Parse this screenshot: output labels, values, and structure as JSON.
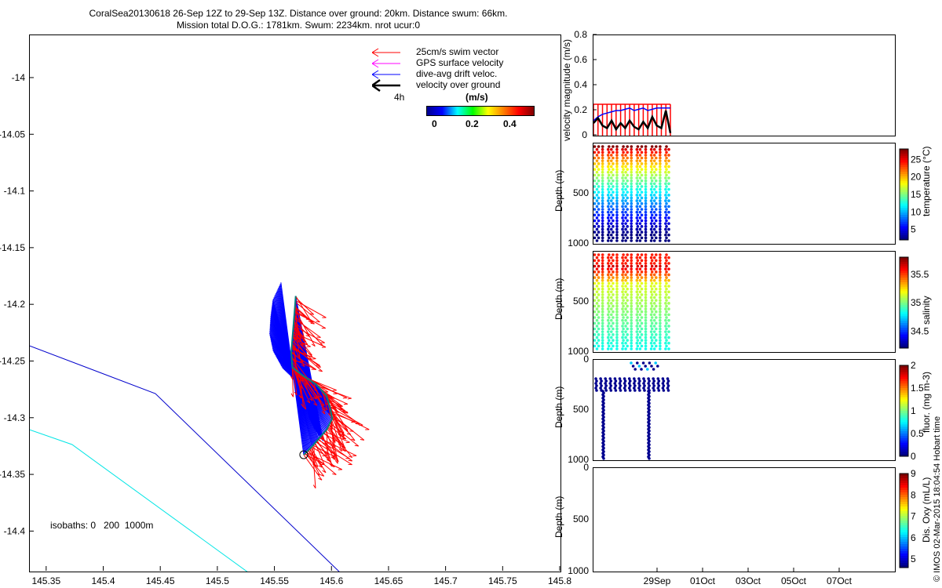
{
  "title": {
    "line1": "CoralSea20130618 26-Sep 12Z to 29-Sep 13Z. Distance over ground: 20km. Distance swum: 66km.",
    "line2": "Mission total D.O.G.: 1781km. Swum: 2234km. nrot ucur:0"
  },
  "colors": {
    "red": "#ff0000",
    "blue": "#0000ff",
    "magenta": "#ff00ff",
    "cyan": "#00ffff",
    "navy": "#000080"
  },
  "copyright": "© IMOS 02-Mar-2015 18:04:54 Hobart time",
  "chart_data": [
    {
      "type": "scatter",
      "name": "track map",
      "xlabel": "",
      "ylabel": "",
      "xlim": [
        145.335,
        145.8
      ],
      "ylim": [
        -14.435,
        -13.962
      ],
      "xticks": [
        "145.35",
        "145.4",
        "145.45",
        "145.5",
        "145.55",
        "145.6",
        "145.65",
        "145.7",
        "145.75",
        "145.8"
      ],
      "yticks": [
        "-14",
        "-14.05",
        "-14.1",
        "-14.15",
        "-14.2",
        "-14.25",
        "-14.3",
        "-14.35",
        "-14.4"
      ],
      "legend": {
        "swim": "25cm/s swim vector",
        "gps": "GPS surface velocity",
        "drift": "dive-avg drift veloc.",
        "ground": "velocity over ground",
        "scale": "4h",
        "cbar_title": "(m/s)",
        "cbar_ticks": [
          "0",
          "0.2",
          "0.4"
        ]
      },
      "isobath_label": "isobaths: 0   200  1000m",
      "track": [
        [
          145.575,
          -14.332
        ],
        [
          145.582,
          -14.325
        ],
        [
          145.588,
          -14.318
        ],
        [
          145.595,
          -14.31
        ],
        [
          145.6,
          -14.3
        ],
        [
          145.598,
          -14.29
        ],
        [
          145.595,
          -14.28
        ],
        [
          145.586,
          -14.27
        ],
        [
          145.574,
          -14.262
        ],
        [
          145.565,
          -14.255
        ],
        [
          145.564,
          -14.242
        ],
        [
          145.565,
          -14.23
        ],
        [
          145.566,
          -14.218
        ],
        [
          145.567,
          -14.205
        ],
        [
          145.568,
          -14.192
        ]
      ],
      "drift_ends": [
        [
          145.555,
          -14.18
        ],
        [
          145.548,
          -14.195
        ],
        [
          145.546,
          -14.21
        ],
        [
          145.545,
          -14.225
        ],
        [
          145.548,
          -14.24
        ],
        [
          145.556,
          -14.255
        ],
        [
          145.566,
          -14.265
        ],
        [
          145.58,
          -14.27
        ],
        [
          145.587,
          -14.285
        ],
        [
          145.58,
          -14.3
        ],
        [
          145.585,
          -14.31
        ],
        [
          145.592,
          -14.32
        ]
      ],
      "isobath_1000": [
        [
          145.335,
          -14.236
        ],
        [
          145.445,
          -14.278
        ],
        [
          145.608,
          -14.437
        ]
      ],
      "isobath_200": [
        [
          145.335,
          -14.31
        ],
        [
          145.372,
          -14.323
        ],
        [
          145.528,
          -14.437
        ]
      ]
    },
    {
      "type": "line",
      "name": "velocity magnitude",
      "ylabel": "velocity magnitude (m/s)",
      "ylim": [
        0,
        0.8
      ],
      "yticks": [
        "0",
        "0.2",
        "0.4",
        "0.6",
        "0.8"
      ],
      "series": [
        {
          "name": "swim",
          "color": "red",
          "values": [
            0.25,
            0.25,
            0.25,
            0.25,
            0.25,
            0.25,
            0.25,
            0.25,
            0.25,
            0.25,
            0.25,
            0.25,
            0.25,
            0.25,
            0.25,
            0.25,
            0.25,
            0.25
          ]
        },
        {
          "name": "drift",
          "color": "blue",
          "values": [
            0.12,
            0.15,
            0.17,
            0.18,
            0.19,
            0.2,
            0.2,
            0.21,
            0.22,
            0.2,
            0.21,
            0.22,
            0.2,
            0.21,
            0.22,
            0.22,
            0.22,
            0.22
          ]
        },
        {
          "name": "ground",
          "color": "black",
          "values": [
            0.1,
            0.14,
            0.08,
            0.06,
            0.12,
            0.05,
            0.1,
            0.06,
            0.12,
            0.07,
            0.05,
            0.11,
            0.06,
            0.15,
            0.08,
            0.06,
            0.2,
            0.02
          ]
        }
      ]
    },
    {
      "type": "scatter",
      "name": "temperature section",
      "ylabel": "Depth (m)",
      "yticks": [
        "500",
        "1000"
      ],
      "colorbar_label": "temperature (°C)",
      "colorbar_ticks": [
        "5",
        "10",
        "15",
        "20",
        "25"
      ],
      "clim": [
        2,
        28
      ]
    },
    {
      "type": "scatter",
      "name": "salinity section",
      "ylabel": "Depth (m)",
      "yticks": [
        "500",
        "1000"
      ],
      "colorbar_label": "salinity",
      "colorbar_ticks": [
        "34.5",
        "35",
        "35.5"
      ],
      "clim": [
        34.2,
        35.8
      ]
    },
    {
      "type": "scatter",
      "name": "fluorescence section",
      "ylabel": "Depth (m)",
      "yticks": [
        "0",
        "500",
        "1000"
      ],
      "colorbar_label": "fluor. (mg m-3)",
      "colorbar_ticks": [
        "0",
        "0.5",
        "1",
        "1.5",
        "2"
      ],
      "clim": [
        0,
        2
      ]
    },
    {
      "type": "scatter",
      "name": "oxygen section",
      "ylabel": "Depth (m)",
      "yticks": [
        "0",
        "500",
        "1000"
      ],
      "xticks": [
        "29Sep",
        "01Oct",
        "03Oct",
        "05Oct",
        "07Oct"
      ],
      "colorbar_label": "Dis. Oxy (mL/L)",
      "colorbar_ticks": [
        "5",
        "6",
        "7",
        "8",
        "9"
      ],
      "clim": [
        4.6,
        9
      ]
    }
  ]
}
